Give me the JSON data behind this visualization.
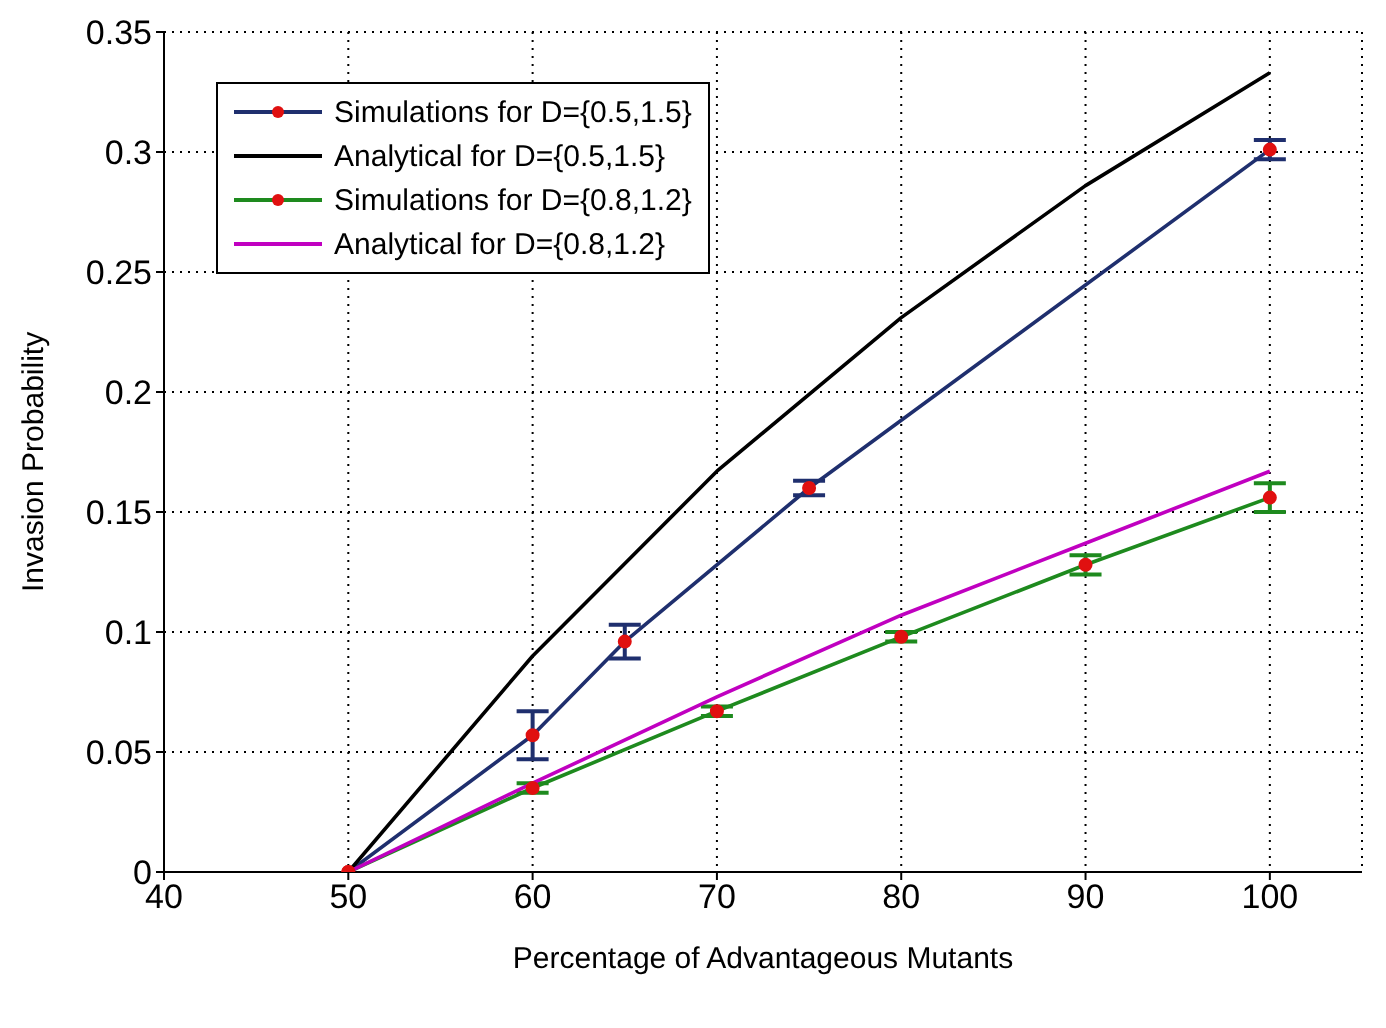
{
  "chart_data": {
    "type": "line",
    "xlabel": "Percentage of Advantageous Mutants",
    "ylabel": "Invasion Probability",
    "xlim": [
      40,
      105
    ],
    "xticks": [
      40,
      50,
      60,
      70,
      80,
      90,
      100
    ],
    "ylim": [
      0,
      0.35
    ],
    "yticks": [
      0,
      0.05,
      0.1,
      0.15,
      0.2,
      0.25,
      0.3,
      0.35
    ],
    "grid": true,
    "legend": "top left",
    "series": [
      {
        "name": "Simulations for D={0.5,1.5}",
        "color": "#1f2f6e",
        "marker": "circle",
        "x": [
          50,
          60,
          65,
          75,
          100
        ],
        "values": [
          0,
          0.057,
          0.096,
          0.16,
          0.301
        ],
        "errors": [
          null,
          0.01,
          0.007,
          0.003,
          0.004
        ]
      },
      {
        "name": "Analytical for D={0.5,1.5}",
        "color": "#000000",
        "marker": "none",
        "x": [
          50,
          60,
          70,
          80,
          90,
          100
        ],
        "values": [
          0,
          0.09,
          0.167,
          0.231,
          0.286,
          0.333
        ]
      },
      {
        "name": "Simulations for D={0.8,1.2}",
        "color": "#1e8a1e",
        "marker": "circle",
        "x": [
          50,
          60,
          70,
          80,
          90,
          100
        ],
        "values": [
          0,
          0.035,
          0.067,
          0.098,
          0.128,
          0.156
        ],
        "errors": [
          null,
          0.002,
          0.002,
          0.002,
          0.004,
          0.006
        ]
      },
      {
        "name": "Analytical for D={0.8,1.2}",
        "color": "#c000c0",
        "marker": "none",
        "x": [
          50,
          60,
          70,
          80,
          90,
          100
        ],
        "values": [
          0,
          0.037,
          0.073,
          0.107,
          0.137,
          0.167
        ]
      }
    ]
  }
}
